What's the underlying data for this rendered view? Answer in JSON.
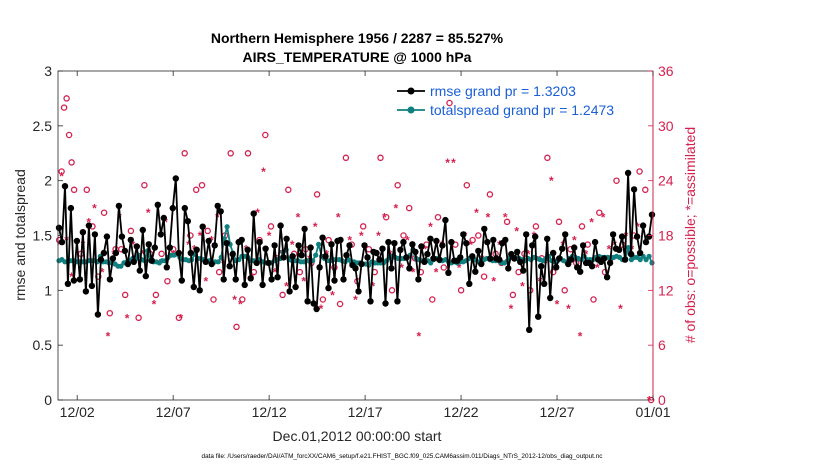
{
  "chart_data": {
    "type": "line",
    "title_line1": "Northern Hemisphere 1956 / 2287 = 85.527%",
    "title_line2": "AIRS_TEMPERATURE @ 1000 hPa",
    "xlabel": "Dec.01,2012 00:00:00 start",
    "ylabel_left": "rmse and totalspread",
    "ylabel_right": "# of obs: o=possible; *=assimilated",
    "ylim_left": [
      0,
      3
    ],
    "ylim_right": [
      0,
      36
    ],
    "xlim_days": [
      0,
      31
    ],
    "x_ticks": [
      {
        "day": 1,
        "label": "12/02"
      },
      {
        "day": 6,
        "label": "12/07"
      },
      {
        "day": 11,
        "label": "12/12"
      },
      {
        "day": 16,
        "label": "12/17"
      },
      {
        "day": 21,
        "label": "12/22"
      },
      {
        "day": 26,
        "label": "12/27"
      },
      {
        "day": 31,
        "label": "01/01"
      }
    ],
    "y_ticks_left": [
      "0",
      "0.5",
      "1",
      "1.5",
      "2",
      "2.5",
      "3"
    ],
    "y_ticks_right": [
      "0",
      "6",
      "12",
      "18",
      "24",
      "30",
      "36"
    ],
    "series": [
      {
        "name": "rmse grand pr = 1.3203",
        "color": "#000000",
        "values": [
          1.57,
          1.44,
          1.95,
          1.06,
          1.75,
          1.09,
          1.45,
          1.1,
          1.53,
          0.99,
          1.59,
          1.04,
          1.51,
          0.78,
          1.28,
          1.34,
          1.49,
          1.1,
          1.29,
          1.34,
          1.77,
          1.49,
          1.36,
          1.24,
          1.46,
          1.26,
          1.4,
          1.18,
          1.55,
          1.13,
          1.42,
          1.27,
          1.39,
          1.78,
          1.51,
          1.66,
          1.21,
          1.39,
          1.75,
          2.02,
          1.34,
          1.09,
          1.75,
          1.63,
          1.34,
          1.03,
          1.37,
          1.0,
          1.58,
          1.26,
          1.45,
          1.24,
          1.41,
          1.77,
          1.72,
          1.1,
          1.43,
          1.22,
          1.33,
          1.1,
          1.44,
          1.46,
          1.05,
          1.37,
          1.11,
          1.7,
          1.25,
          1.44,
          1.05,
          1.38,
          1.25,
          1.1,
          1.41,
          1.12,
          1.59,
          1.3,
          1.47,
          0.99,
          1.31,
          1.03,
          1.41,
          1.32,
          1.56,
          0.9,
          1.39,
          0.88,
          0.83,
          1.21,
          1.48,
          1.31,
          1.02,
          1.42,
          1.09,
          1.45,
          1.46,
          1.1,
          1.32,
          1.41,
          1.23,
          1.2,
          0.99,
          1.24,
          1.41,
          1.3,
          0.9,
          1.35,
          1.34,
          1.28,
          1.38,
          0.88,
          1.44,
          1.2,
          1.43,
          0.9,
          1.37,
          1.44,
          1.3,
          1.2,
          1.42,
          1.35,
          1.1,
          1.4,
          1.26,
          1.33,
          1.47,
          1.29,
          1.45,
          1.28,
          1.41,
          1.64,
          1.16,
          1.44,
          1.27,
          1.27,
          1.3,
          1.51,
          1.43,
          1.06,
          1.31,
          1.17,
          1.36,
          1.24,
          1.56,
          1.44,
          1.29,
          1.46,
          1.29,
          1.28,
          1.43,
          1.46,
          1.2,
          1.33,
          1.29,
          1.35,
          1.26,
          1.18,
          1.51,
          0.64,
          1.41,
          1.49,
          0.76,
          1.22,
          1.06,
          1.47,
          0.93,
          1.34,
          1.21,
          1.29,
          1.38,
          1.51,
          1.24,
          1.28,
          1.39,
          1.21,
          1.17,
          1.41,
          1.25,
          1.25,
          1.22,
          1.44,
          1.28,
          1.26,
          1.29,
          1.12,
          1.25,
          1.51,
          1.38,
          1.37,
          1.49,
          1.28,
          2.07,
          1.33,
          1.92,
          1.49,
          1.34,
          1.59,
          1.44,
          1.49,
          1.69
        ],
        "x_start_day": 0.05,
        "x_end_day": 30.95
      },
      {
        "name": "totalspread grand pr = 1.2473",
        "color": "#0f7f7f",
        "values": [
          1.27,
          1.28,
          1.26,
          1.26,
          1.27,
          1.27,
          1.26,
          1.26,
          1.26,
          1.26,
          1.27,
          1.27,
          1.27,
          1.26,
          1.31,
          1.26,
          1.26,
          1.25,
          1.25,
          1.24,
          1.22,
          1.22,
          1.25,
          1.26,
          1.27,
          1.29,
          1.29,
          1.32,
          1.28,
          1.27,
          1.36,
          1.27,
          1.26,
          1.26,
          1.25,
          1.27,
          1.27,
          1.3,
          1.32,
          1.32,
          1.33,
          1.3,
          1.28,
          1.28,
          1.27,
          1.28,
          1.33,
          1.29,
          1.29,
          1.28,
          1.27,
          1.27,
          1.26,
          1.26,
          1.26,
          1.3,
          1.47,
          1.58,
          1.42,
          1.34,
          1.27,
          1.28,
          1.31,
          1.31,
          1.3,
          1.27,
          1.27,
          1.26,
          1.28,
          1.26,
          1.25,
          1.25,
          1.25,
          1.27,
          1.28,
          1.29,
          1.35,
          1.37,
          1.28,
          1.27,
          1.27,
          1.27,
          1.26,
          1.26,
          1.27,
          1.27,
          1.27,
          1.32,
          1.42,
          1.31,
          1.29,
          1.27,
          1.27,
          1.28,
          1.28,
          1.28,
          1.27,
          1.26,
          1.28,
          1.26,
          1.26,
          1.25,
          1.25,
          1.24,
          1.24,
          1.23,
          1.26,
          1.25,
          1.25,
          1.25,
          1.25,
          1.27,
          1.3,
          1.31,
          1.3,
          1.29,
          1.29,
          1.29,
          1.3,
          1.32,
          1.37,
          1.29,
          1.28,
          1.27,
          1.27,
          1.27,
          1.25,
          1.28,
          1.29,
          1.27,
          1.27,
          1.28,
          1.26,
          1.25,
          1.26,
          1.25,
          1.26,
          1.26,
          1.27,
          1.29,
          1.3,
          1.28,
          1.26,
          1.24,
          1.28,
          1.29,
          1.28,
          1.27,
          1.27,
          1.27,
          1.25,
          1.25,
          1.27,
          1.3,
          1.3,
          1.29,
          1.29,
          1.28,
          1.27,
          1.29,
          1.28,
          1.3,
          1.29,
          1.28,
          1.27,
          1.29,
          1.31,
          1.27,
          1.26,
          1.27,
          1.29,
          1.27,
          1.26,
          1.29,
          1.31,
          1.3,
          1.29,
          1.28,
          1.31,
          1.28,
          1.28,
          1.28,
          1.3,
          1.31,
          1.3,
          1.3,
          1.3,
          1.29,
          1.3,
          1.31,
          1.3,
          1.28,
          1.29,
          1.39,
          1.28,
          1.3,
          1.3,
          1.28,
          1.31,
          1.28,
          1.31,
          1.25
        ],
        "x_start_day": 0.05,
        "x_end_day": 30.95
      }
    ],
    "obs_possible": {
      "symbol": "o",
      "color": "#d6204e",
      "points": [
        [
          0.06,
          17.5
        ],
        [
          0.19,
          25.0
        ],
        [
          0.32,
          32.0
        ],
        [
          0.45,
          33.0
        ],
        [
          0.58,
          29.0
        ],
        [
          0.71,
          26.0
        ],
        [
          0.84,
          23.0
        ],
        [
          1.2,
          16.0
        ],
        [
          1.5,
          23.0
        ],
        [
          1.8,
          19.0
        ],
        [
          2.1,
          13.5
        ],
        [
          2.4,
          20.5
        ],
        [
          2.7,
          9.5
        ],
        [
          3.0,
          16.5
        ],
        [
          3.3,
          16.5
        ],
        [
          3.5,
          11.5
        ],
        [
          3.8,
          18.5
        ],
        [
          4.2,
          9.0
        ],
        [
          4.5,
          23.5
        ],
        [
          4.8,
          16.0
        ],
        [
          5.1,
          11.5
        ],
        [
          5.4,
          16.0
        ],
        [
          5.7,
          13.0
        ],
        [
          6.0,
          16.5
        ],
        [
          6.3,
          9.0
        ],
        [
          6.6,
          27.0
        ],
        [
          6.9,
          18.0
        ],
        [
          7.2,
          23.0
        ],
        [
          7.5,
          23.5
        ],
        [
          7.8,
          18.5
        ],
        [
          8.1,
          11.0
        ],
        [
          8.4,
          14.0
        ],
        [
          8.7,
          18.0
        ],
        [
          9.0,
          27.0
        ],
        [
          9.3,
          8.0
        ],
        [
          9.6,
          11.0
        ],
        [
          9.9,
          27.0
        ],
        [
          10.2,
          14.0
        ],
        [
          10.5,
          17.5
        ],
        [
          10.8,
          29.0
        ],
        [
          11.1,
          19.0
        ],
        [
          11.4,
          15.5
        ],
        [
          11.7,
          11.5
        ],
        [
          12.0,
          23.0
        ],
        [
          12.3,
          16.0
        ],
        [
          12.6,
          14.0
        ],
        [
          12.9,
          16.5
        ],
        [
          13.2,
          15.0
        ],
        [
          13.5,
          22.5
        ],
        [
          13.8,
          11.0
        ],
        [
          14.1,
          17.5
        ],
        [
          14.4,
          14.5
        ],
        [
          14.7,
          10.5
        ],
        [
          15.0,
          26.5
        ],
        [
          15.3,
          17.0
        ],
        [
          15.6,
          13.0
        ],
        [
          15.9,
          19.0
        ],
        [
          16.2,
          16.5
        ],
        [
          16.5,
          14.0
        ],
        [
          16.8,
          26.5
        ],
        [
          17.1,
          20.0
        ],
        [
          17.4,
          12.0
        ],
        [
          17.7,
          23.5
        ],
        [
          18.0,
          18.0
        ],
        [
          18.3,
          21.0
        ],
        [
          18.6,
          15.5
        ],
        [
          18.9,
          14.0
        ],
        [
          19.2,
          17.0
        ],
        [
          19.5,
          11.0
        ],
        [
          19.8,
          20.0
        ],
        [
          20.1,
          14.5
        ],
        [
          20.4,
          32.5
        ],
        [
          20.7,
          17.0
        ],
        [
          21.0,
          12.0
        ],
        [
          21.3,
          23.5
        ],
        [
          21.6,
          17.5
        ],
        [
          21.9,
          18.0
        ],
        [
          22.2,
          13.5
        ],
        [
          22.5,
          22.5
        ],
        [
          22.8,
          16.0
        ],
        [
          23.1,
          15.0
        ],
        [
          23.4,
          19.5
        ],
        [
          23.7,
          11.5
        ],
        [
          24.0,
          14.0
        ],
        [
          24.3,
          16.0
        ],
        [
          24.6,
          12.0
        ],
        [
          24.9,
          19.0
        ],
        [
          25.2,
          15.5
        ],
        [
          25.5,
          26.5
        ],
        [
          25.8,
          14.0
        ],
        [
          26.1,
          19.5
        ],
        [
          26.4,
          12.0
        ],
        [
          26.7,
          16.5
        ],
        [
          27.0,
          15.0
        ],
        [
          27.3,
          19.0
        ],
        [
          27.6,
          17.0
        ],
        [
          27.9,
          11.0
        ],
        [
          28.2,
          20.5
        ],
        [
          28.5,
          14.0
        ],
        [
          28.8,
          15.5
        ],
        [
          29.1,
          24.0
        ],
        [
          29.4,
          17.0
        ],
        [
          29.7,
          16.5
        ],
        [
          30.0,
          18.0
        ],
        [
          30.3,
          25.0
        ],
        [
          30.6,
          23.0
        ],
        [
          30.9,
          0.0
        ]
      ]
    },
    "obs_assimilated": {
      "symbol": "*",
      "color": "#d6204e",
      "points": [
        [
          0.06,
          17.0
        ],
        [
          0.19,
          24.5
        ],
        [
          0.45,
          17.5
        ],
        [
          0.71,
          13.5
        ],
        [
          1.3,
          17.0
        ],
        [
          1.6,
          19.5
        ],
        [
          1.9,
          21.0
        ],
        [
          2.3,
          14.0
        ],
        [
          2.6,
          7.0
        ],
        [
          2.9,
          16.0
        ],
        [
          3.2,
          20.0
        ],
        [
          3.6,
          9.0
        ],
        [
          3.9,
          17.0
        ],
        [
          4.4,
          16.0
        ],
        [
          4.7,
          20.5
        ],
        [
          5.0,
          10.5
        ],
        [
          5.3,
          15.0
        ],
        [
          5.6,
          19.5
        ],
        [
          6.0,
          16.0
        ],
        [
          6.4,
          9.0
        ],
        [
          6.8,
          17.0
        ],
        [
          7.1,
          16.5
        ],
        [
          7.4,
          18.0
        ],
        [
          7.7,
          13.0
        ],
        [
          8.0,
          17.5
        ],
        [
          8.3,
          20.0
        ],
        [
          8.6,
          15.0
        ],
        [
          8.9,
          14.5
        ],
        [
          9.2,
          11.0
        ],
        [
          9.5,
          10.5
        ],
        [
          9.8,
          16.5
        ],
        [
          10.1,
          13.5
        ],
        [
          10.4,
          20.5
        ],
        [
          10.7,
          25.0
        ],
        [
          11.0,
          18.0
        ],
        [
          11.3,
          14.0
        ],
        [
          11.6,
          16.0
        ],
        [
          11.9,
          12.5
        ],
        [
          12.2,
          17.0
        ],
        [
          12.5,
          20.0
        ],
        [
          12.8,
          13.0
        ],
        [
          13.1,
          15.5
        ],
        [
          13.4,
          19.0
        ],
        [
          13.7,
          10.0
        ],
        [
          14.0,
          16.0
        ],
        [
          14.3,
          11.5
        ],
        [
          14.6,
          20.0
        ],
        [
          14.9,
          13.0
        ],
        [
          15.2,
          17.5
        ],
        [
          15.5,
          11.0
        ],
        [
          15.8,
          18.0
        ],
        [
          16.1,
          15.5
        ],
        [
          16.4,
          12.5
        ],
        [
          16.7,
          18.0
        ],
        [
          17.0,
          20.0
        ],
        [
          17.3,
          16.0
        ],
        [
          17.6,
          21.0
        ],
        [
          17.9,
          14.5
        ],
        [
          18.2,
          17.5
        ],
        [
          18.5,
          14.0
        ],
        [
          18.8,
          7.0
        ],
        [
          19.1,
          16.5
        ],
        [
          19.4,
          19.0
        ],
        [
          19.7,
          14.0
        ],
        [
          20.0,
          17.0
        ],
        [
          20.3,
          26.0
        ],
        [
          20.6,
          26.0
        ],
        [
          20.9,
          14.5
        ],
        [
          21.2,
          18.0
        ],
        [
          21.5,
          17.0
        ],
        [
          21.8,
          20.5
        ],
        [
          22.1,
          15.5
        ],
        [
          22.4,
          20.0
        ],
        [
          22.7,
          13.0
        ],
        [
          23.0,
          17.0
        ],
        [
          23.3,
          20.0
        ],
        [
          23.6,
          10.0
        ],
        [
          23.9,
          18.5
        ],
        [
          24.2,
          12.5
        ],
        [
          24.5,
          16.0
        ],
        [
          24.8,
          18.0
        ],
        [
          25.1,
          13.0
        ],
        [
          25.4,
          15.0
        ],
        [
          25.7,
          24.0
        ],
        [
          26.0,
          10.5
        ],
        [
          26.3,
          17.0
        ],
        [
          26.6,
          10.0
        ],
        [
          26.9,
          17.5
        ],
        [
          27.2,
          7.0
        ],
        [
          27.5,
          16.0
        ],
        [
          27.8,
          19.5
        ],
        [
          28.1,
          14.5
        ],
        [
          28.4,
          20.0
        ],
        [
          28.7,
          16.5
        ],
        [
          29.0,
          17.0
        ],
        [
          29.3,
          10.0
        ],
        [
          29.6,
          18.0
        ],
        [
          29.9,
          16.5
        ],
        [
          30.2,
          19.0
        ],
        [
          30.5,
          19.0
        ],
        [
          30.8,
          0.0
        ]
      ]
    },
    "legend_location": "top-right",
    "grid": false
  },
  "footer": {
    "data_file": "data file: /Users/raeder/DAI/ATM_forcXX/CAM6_setup/f.e21.FHIST_BGC.f09_025.CAM6assim.011/Diags_NTrS_2012-12/obs_diag_output.nc"
  }
}
